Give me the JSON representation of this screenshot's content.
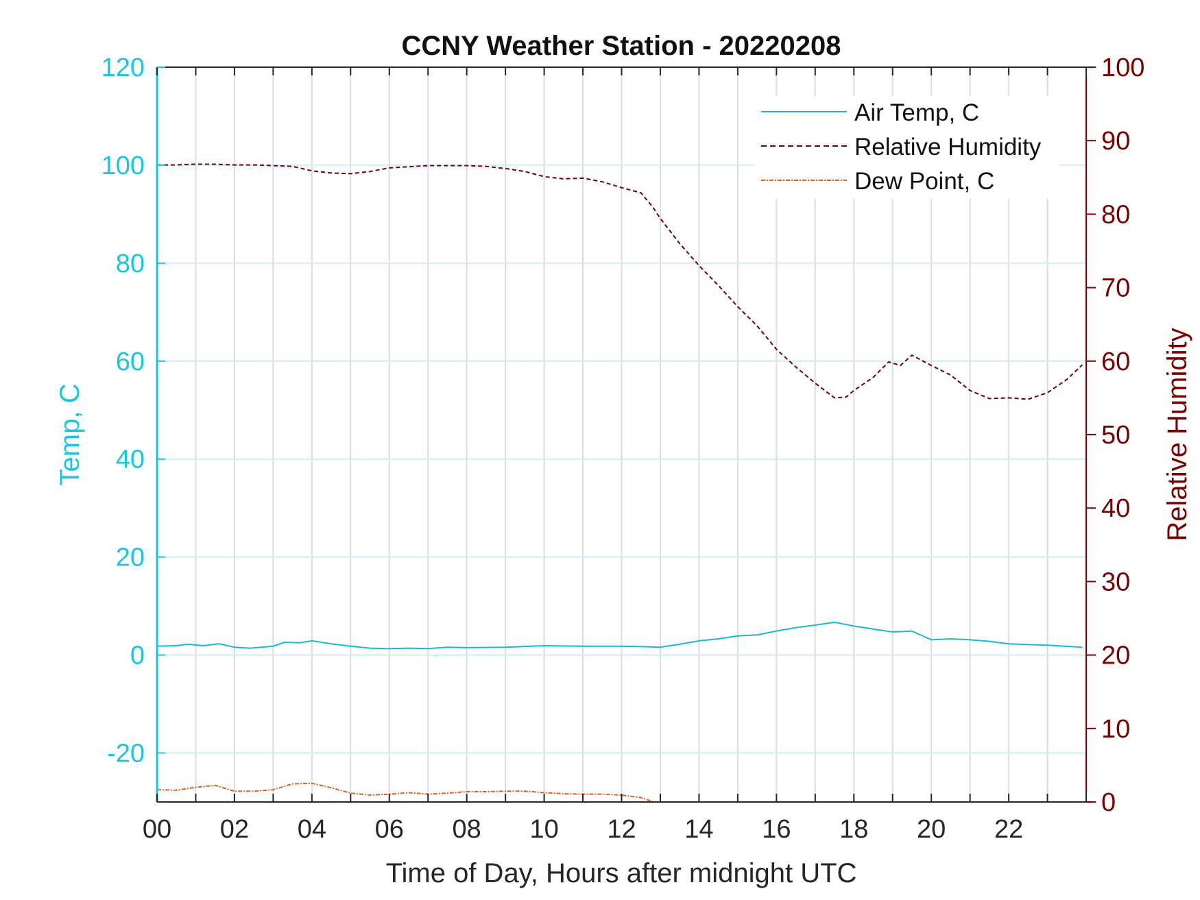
{
  "chart_data": {
    "type": "line",
    "title": "CCNY Weather Station - 20220208",
    "xlabel": "Time of Day, Hours after midnight UTC",
    "ylabel_left": "Temp, C",
    "ylabel_right": "Relative Humidity",
    "xlim": [
      0,
      24
    ],
    "ylim_left": [
      -30,
      120
    ],
    "ylim_right": [
      0,
      100
    ],
    "x_ticks": [
      0,
      2,
      4,
      6,
      8,
      10,
      12,
      14,
      16,
      18,
      20,
      22
    ],
    "x_tick_labels": [
      "00",
      "02",
      "04",
      "06",
      "08",
      "10",
      "12",
      "14",
      "16",
      "18",
      "20",
      "22"
    ],
    "y_left_ticks": [
      120,
      100,
      80,
      60,
      40,
      20,
      0,
      -20
    ],
    "y_left_tick_labels": [
      "120",
      "100",
      "80",
      "60",
      "40",
      "20",
      "0",
      "-20"
    ],
    "y_right_ticks": [
      100,
      90,
      80,
      70,
      60,
      50,
      40,
      30,
      20,
      10,
      0
    ],
    "y_right_tick_labels": [
      "100",
      "90",
      "80",
      "70",
      "60",
      "50",
      "40",
      "30",
      "20",
      "10",
      "0"
    ],
    "vertical_grid": true,
    "horizontal_grid": true,
    "legend_position": "top-right",
    "colors": {
      "left_axis": "#1ac6dd",
      "right_axis": "#7a0000",
      "air_temp": "#1ab8d4",
      "humidity": "#6e0000",
      "dew_point": "#e0601a",
      "grid": "#d9dde0",
      "hgrid": "#cdeff5"
    },
    "series": [
      {
        "name": "Air Temp, C",
        "axis": "left",
        "style": "solid",
        "x": [
          0,
          0.5,
          0.8,
          1.2,
          1.6,
          2.0,
          2.4,
          3.0,
          3.3,
          3.7,
          4.0,
          4.5,
          5.0,
          5.5,
          6.0,
          6.5,
          7.0,
          7.5,
          8.0,
          9.0,
          10.0,
          11.0,
          12.0,
          12.6,
          13.0,
          13.5,
          14.0,
          14.5,
          15.0,
          15.5,
          16.0,
          16.5,
          17.0,
          17.5,
          18.0,
          18.5,
          19.0,
          19.5,
          20.0,
          20.5,
          21.0,
          21.5,
          22.0,
          23.0,
          23.9
        ],
        "y": [
          1.8,
          1.9,
          2.2,
          1.9,
          2.3,
          1.6,
          1.4,
          1.8,
          2.6,
          2.5,
          2.9,
          2.3,
          1.8,
          1.4,
          1.3,
          1.4,
          1.3,
          1.6,
          1.5,
          1.6,
          1.9,
          1.8,
          1.8,
          1.7,
          1.6,
          2.2,
          2.9,
          3.3,
          3.9,
          4.1,
          4.9,
          5.6,
          6.1,
          6.7,
          5.9,
          5.3,
          4.7,
          4.9,
          3.1,
          3.3,
          3.1,
          2.8,
          2.3,
          2.0,
          1.6
        ]
      },
      {
        "name": "Relative Humidity",
        "axis": "right",
        "style": "dashed",
        "x": [
          0,
          0.5,
          1.0,
          1.5,
          2.0,
          2.5,
          3.0,
          3.5,
          4.0,
          4.5,
          5.0,
          5.5,
          6.0,
          7.0,
          8.0,
          8.5,
          9.0,
          9.5,
          10.0,
          10.5,
          11.0,
          11.5,
          12.0,
          12.5,
          12.8,
          13.0,
          13.5,
          14.0,
          14.5,
          15.0,
          15.5,
          16.0,
          16.5,
          17.0,
          17.5,
          17.8,
          18.0,
          18.5,
          18.9,
          19.2,
          19.5,
          20.0,
          20.5,
          21.0,
          21.5,
          22.0,
          22.5,
          23.0,
          23.5,
          23.9
        ],
        "y": [
          86.7,
          86.7,
          86.8,
          86.8,
          86.7,
          86.7,
          86.6,
          86.5,
          85.9,
          85.6,
          85.5,
          85.8,
          86.3,
          86.6,
          86.6,
          86.5,
          86.2,
          85.8,
          85.1,
          84.8,
          84.9,
          84.4,
          83.6,
          82.9,
          81.0,
          79.4,
          76.0,
          73.0,
          70.3,
          67.4,
          64.8,
          61.6,
          59.2,
          57.0,
          55.0,
          55.1,
          56.0,
          57.8,
          59.9,
          59.4,
          60.8,
          59.4,
          58.1,
          56.0,
          54.9,
          55.0,
          54.8,
          55.7,
          57.5,
          59.5
        ]
      },
      {
        "name": "Dew Point, C",
        "axis": "left",
        "style": "dash-dot",
        "x": [
          0,
          0.5,
          1.0,
          1.5,
          2.0,
          2.5,
          3.0,
          3.5,
          4.0,
          4.5,
          5.0,
          5.5,
          6.0,
          6.5,
          7.0,
          7.5,
          8.0,
          8.5,
          9.0,
          9.5,
          10.0,
          10.5,
          11.0,
          11.5,
          12.0,
          12.5,
          12.8
        ],
        "y": [
          -27.5,
          -27.6,
          -27.0,
          -26.6,
          -27.8,
          -27.8,
          -27.5,
          -26.3,
          -26.2,
          -27.1,
          -28.2,
          -28.6,
          -28.4,
          -28.1,
          -28.4,
          -28.2,
          -27.9,
          -27.9,
          -27.8,
          -27.8,
          -28.1,
          -28.3,
          -28.4,
          -28.4,
          -28.6,
          -29.1,
          -29.9
        ]
      }
    ]
  }
}
